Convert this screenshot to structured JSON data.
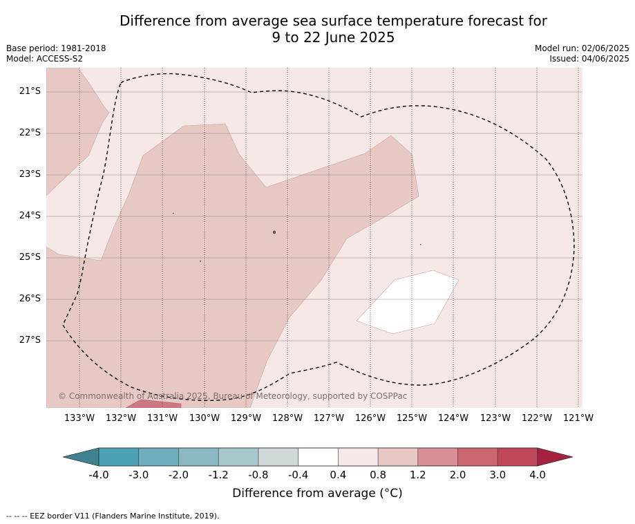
{
  "title": {
    "line1": "Difference from average sea surface temperature forecast for",
    "line2": "9 to 22 June 2025"
  },
  "meta_left": {
    "base_period": "Base period: 1981-2018",
    "model": "Model: ACCESS-S2"
  },
  "meta_right": {
    "model_run": "Model run: 02/06/2025",
    "issued": "Issued: 04/06/2025"
  },
  "latitude_labels": [
    "21°S",
    "22°S",
    "23°S",
    "24°S",
    "25°S",
    "26°S",
    "27°S"
  ],
  "longitude_labels": [
    "133°W",
    "132°W",
    "131°W",
    "130°W",
    "129°W",
    "128°W",
    "127°W",
    "126°W",
    "125°W",
    "124°W",
    "123°W",
    "122°W",
    "121°W"
  ],
  "copyright": "© Commonwealth of Australia 2025, Bureau of Meteorology, supported by COSPPac",
  "colorbar": {
    "ticks": [
      "-4.0",
      "-3.0",
      "-2.0",
      "-1.2",
      "-0.8",
      "-0.4",
      "0.4",
      "0.8",
      "1.2",
      "2.0",
      "3.0",
      "4.0"
    ],
    "colors": [
      "#4ba2b3",
      "#6eaebd",
      "#8cb8c4",
      "#a9c8cd",
      "#d1d8da",
      "#ffffff",
      "#f5e8e7",
      "#e8c8c4",
      "#d98f96",
      "#cb6670",
      "#bf4759"
    ],
    "under_color": "#3f8390",
    "over_color": "#a8213f",
    "label": "Difference from average (°C)"
  },
  "map_colors": {
    "anomaly_0_4_to_0_8": "#f5e8e7",
    "anomaly_0_8_to_1_2": "#e7c8c4",
    "anomaly_2_0_to_3_0": "#cd7882",
    "neutral": "#ffffff"
  },
  "footer": "--  --  -- EEZ border V11 (Flanders Marine Institute, 2019)."
}
